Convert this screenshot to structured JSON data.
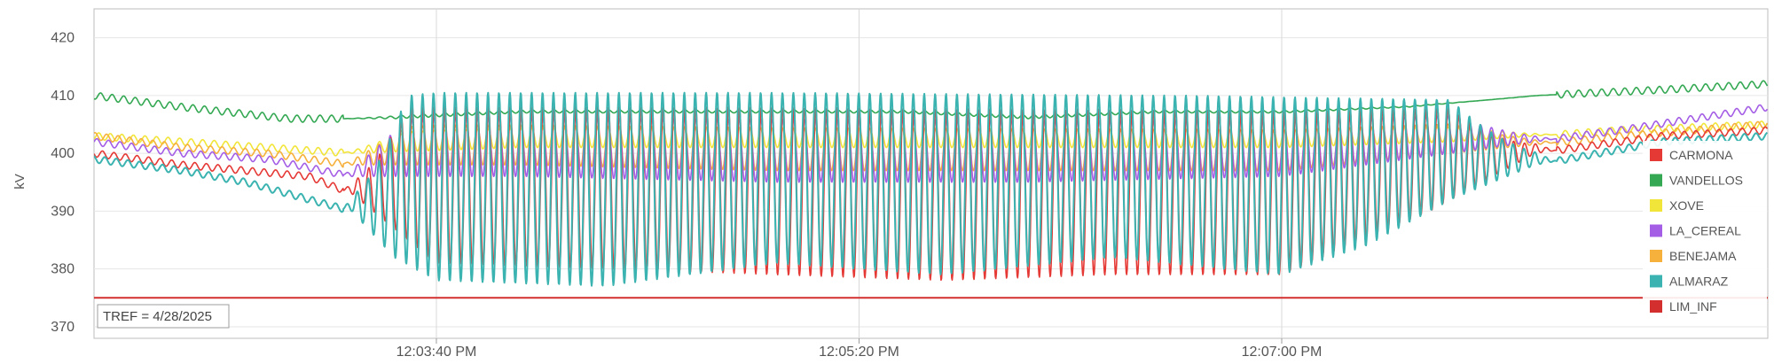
{
  "chart_data": {
    "type": "line",
    "ylabel": "kV",
    "xlabel": "",
    "ylim": [
      368,
      425
    ],
    "yticks": [
      370,
      380,
      390,
      400,
      410,
      420
    ],
    "x_time_range": [
      "12:02:19 PM",
      "12:08:55 PM"
    ],
    "xticks": [
      "12:03:40 PM",
      "12:05:20 PM",
      "12:07:00 PM"
    ],
    "grid": true,
    "legend_position": "right",
    "reference_label": "TREF = 4/28/2025",
    "series": [
      {
        "name": "CARMONA",
        "color": "#e53935",
        "points": [
          [
            "12:02:19 PM",
            400
          ],
          [
            "12:02:40 PM",
            398
          ],
          [
            "12:02:55 PM",
            397
          ],
          [
            "12:03:10 PM",
            396
          ],
          [
            "12:03:20 PM",
            393
          ],
          [
            "12:03:40 PM",
            381
          ],
          [
            "12:04:20 PM",
            380
          ],
          [
            "12:05:00 PM",
            379
          ],
          [
            "12:05:40 PM",
            378
          ],
          [
            "12:06:20 PM",
            379
          ],
          [
            "12:07:00 PM",
            379
          ],
          [
            "12:07:35 PM",
            390
          ],
          [
            "12:08:00 PM",
            400
          ],
          [
            "12:08:30 PM",
            403
          ],
          [
            "12:08:55 PM",
            404
          ]
        ]
      },
      {
        "name": "VANDELLOS",
        "color": "#34a853",
        "points": [
          [
            "12:02:19 PM",
            410
          ],
          [
            "12:02:40 PM",
            408
          ],
          [
            "12:03:05 PM",
            406
          ],
          [
            "12:03:30 PM",
            406
          ],
          [
            "12:04:00 PM",
            407
          ],
          [
            "12:04:30 PM",
            407
          ],
          [
            "12:05:00 PM",
            407
          ],
          [
            "12:05:30 PM",
            407
          ],
          [
            "12:06:00 PM",
            406
          ],
          [
            "12:06:30 PM",
            407
          ],
          [
            "12:07:00 PM",
            407
          ],
          [
            "12:07:30 PM",
            408
          ],
          [
            "12:08:00 PM",
            410
          ],
          [
            "12:08:30 PM",
            411
          ],
          [
            "12:08:55 PM",
            412
          ]
        ]
      },
      {
        "name": "XOVE",
        "color": "#f2e53a",
        "points": [
          [
            "12:02:19 PM",
            403
          ],
          [
            "12:02:40 PM",
            402
          ],
          [
            "12:03:00 PM",
            401
          ],
          [
            "12:03:20 PM",
            400
          ],
          [
            "12:04:00 PM",
            401
          ],
          [
            "12:05:00 PM",
            401
          ],
          [
            "12:06:00 PM",
            401
          ],
          [
            "12:07:00 PM",
            401
          ],
          [
            "12:07:40 PM",
            402
          ],
          [
            "12:08:20 PM",
            404
          ],
          [
            "12:08:55 PM",
            405
          ]
        ]
      },
      {
        "name": "LA_CEREAL",
        "color": "#a45ee5",
        "points": [
          [
            "12:02:19 PM",
            402
          ],
          [
            "12:02:40 PM",
            400
          ],
          [
            "12:03:00 PM",
            399
          ],
          [
            "12:03:20 PM",
            396
          ],
          [
            "12:04:00 PM",
            396
          ],
          [
            "12:05:00 PM",
            395
          ],
          [
            "12:06:00 PM",
            395
          ],
          [
            "12:07:00 PM",
            396
          ],
          [
            "12:07:40 PM",
            400
          ],
          [
            "12:08:20 PM",
            404
          ],
          [
            "12:08:55 PM",
            408
          ]
        ]
      },
      {
        "name": "BENEJAMA",
        "color": "#f6b03c",
        "points": [
          [
            "12:02:19 PM",
            403
          ],
          [
            "12:02:40 PM",
            401
          ],
          [
            "12:03:00 PM",
            400
          ],
          [
            "12:03:20 PM",
            398
          ],
          [
            "12:04:00 PM",
            398
          ],
          [
            "12:05:00 PM",
            397
          ],
          [
            "12:06:00 PM",
            397
          ],
          [
            "12:07:00 PM",
            397
          ],
          [
            "12:07:40 PM",
            400
          ],
          [
            "12:08:20 PM",
            403
          ],
          [
            "12:08:55 PM",
            405
          ]
        ]
      },
      {
        "name": "ALMARAZ",
        "color": "#3bb3b0",
        "points": [
          [
            "12:02:19 PM",
            399
          ],
          [
            "12:02:40 PM",
            397
          ],
          [
            "12:02:55 PM",
            395
          ],
          [
            "12:03:10 PM",
            392
          ],
          [
            "12:03:20 PM",
            390
          ],
          [
            "12:03:30 PM",
            382
          ],
          [
            "12:03:40 PM",
            378
          ],
          [
            "12:04:20 PM",
            377
          ],
          [
            "12:05:00 PM",
            381
          ],
          [
            "12:05:40 PM",
            379
          ],
          [
            "12:06:20 PM",
            382
          ],
          [
            "12:07:00 PM",
            379
          ],
          [
            "12:07:20 PM",
            384
          ],
          [
            "12:07:40 PM",
            392
          ],
          [
            "12:08:00 PM",
            398
          ],
          [
            "12:08:30 PM",
            402
          ],
          [
            "12:08:55 PM",
            403
          ]
        ]
      },
      {
        "name": "LIM_INF",
        "color": "#d32f2f",
        "points": [
          [
            "12:02:19 PM",
            375
          ],
          [
            "12:08:55 PM",
            375
          ]
        ]
      }
    ]
  }
}
